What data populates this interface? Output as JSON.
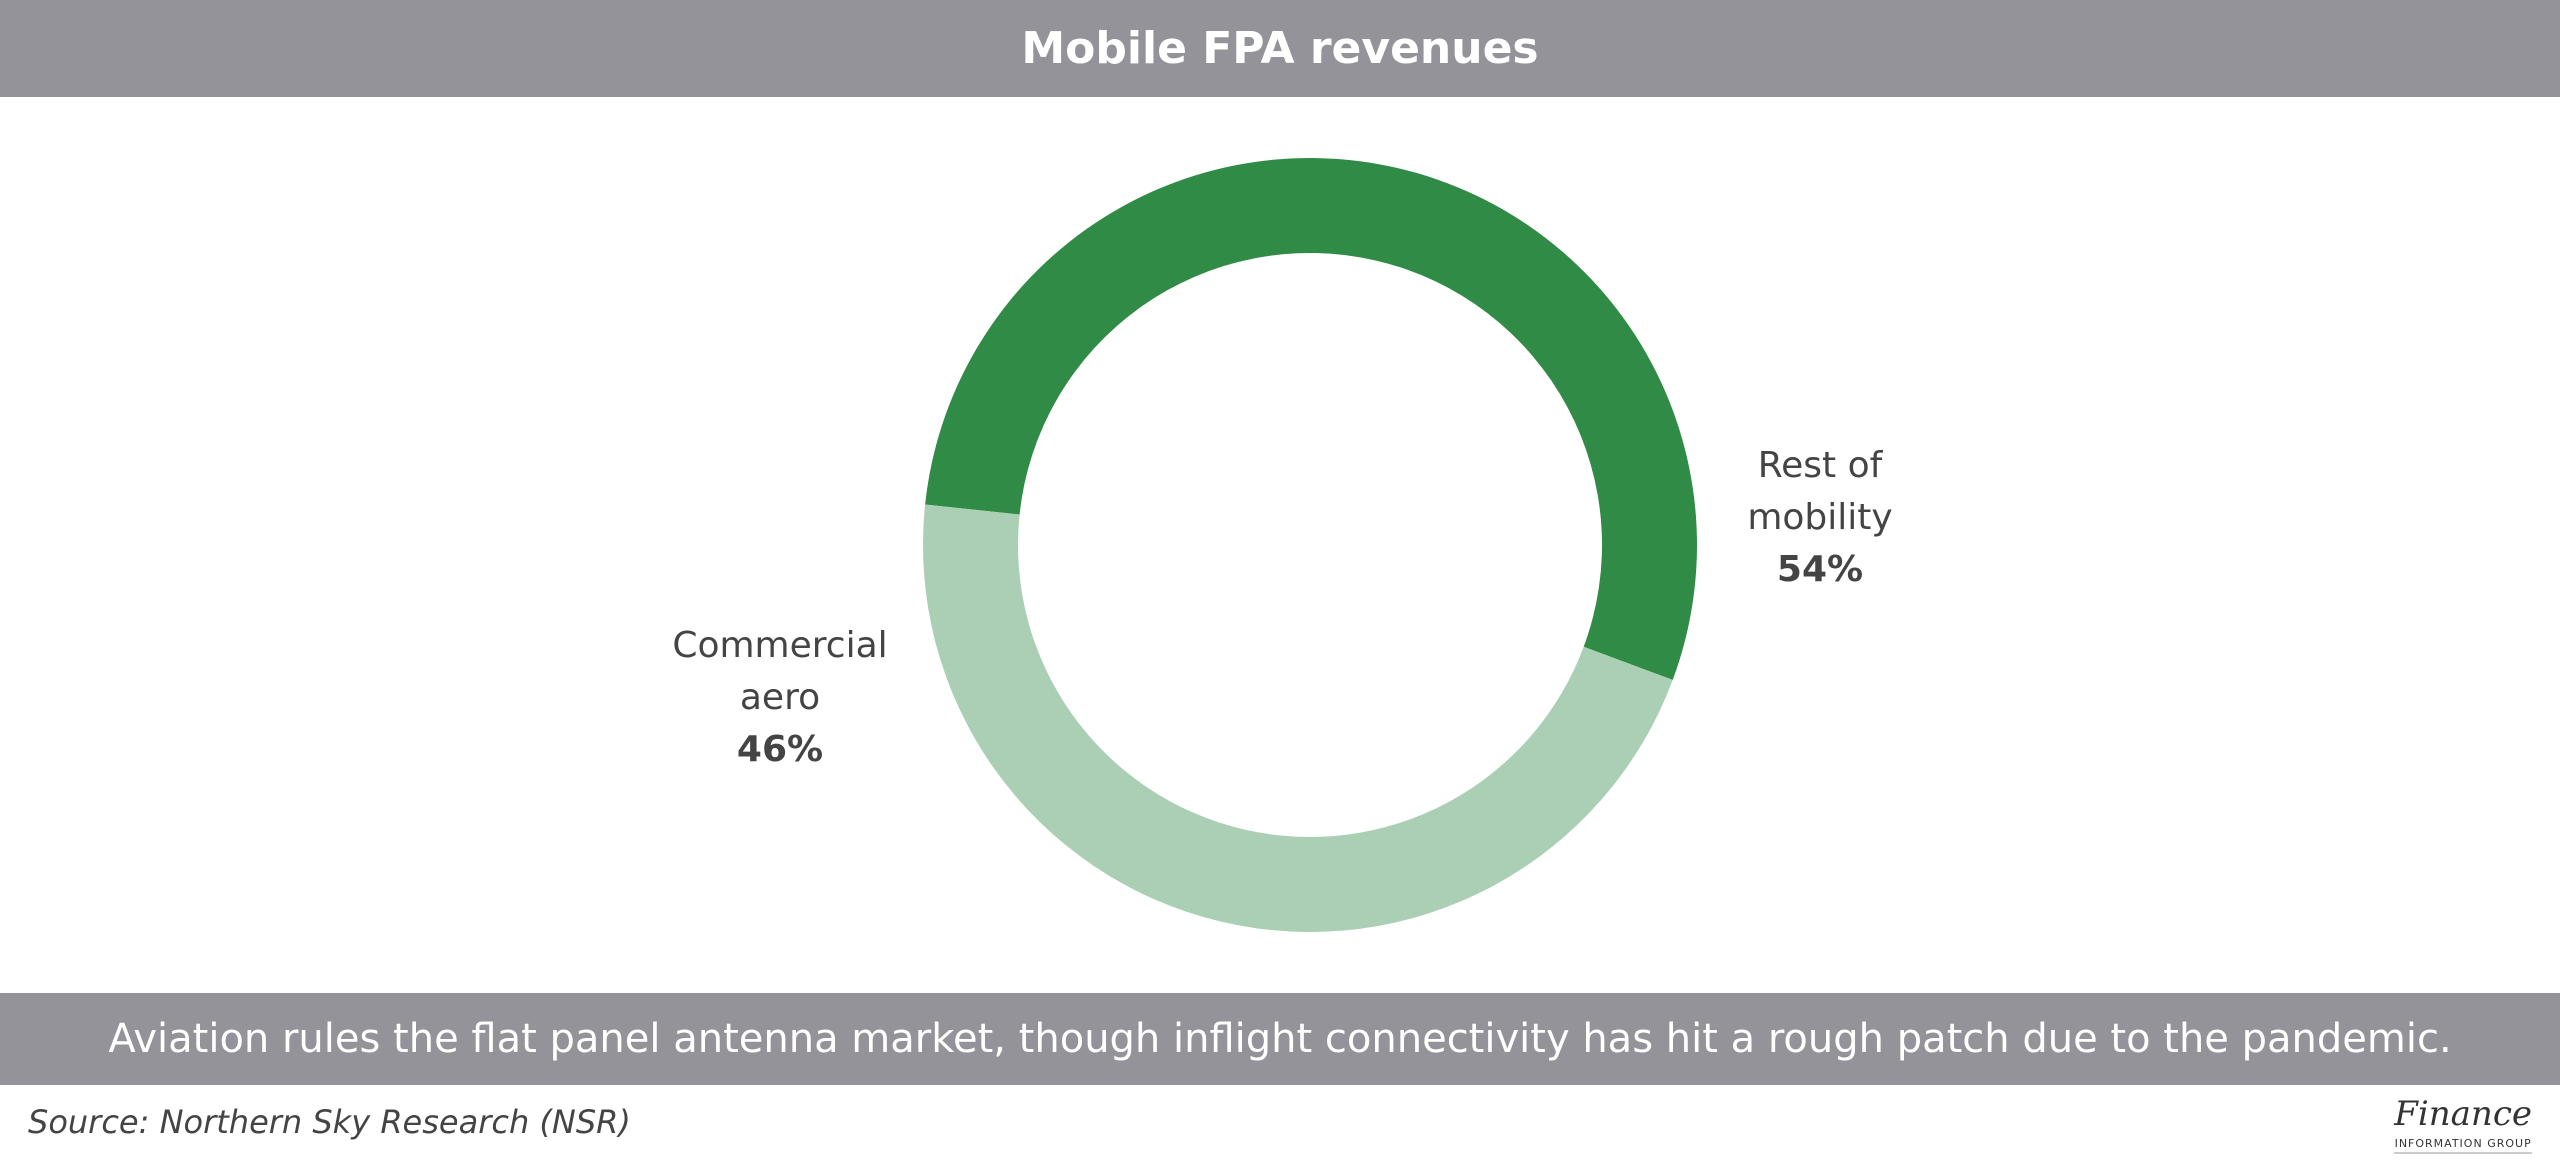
{
  "header": {
    "title": "Mobile FPA revenues"
  },
  "chart_data": {
    "type": "pie",
    "variant": "donut",
    "title": "Mobile FPA revenues",
    "slices": [
      {
        "label_line1": "Rest of",
        "label_line2": "mobility",
        "value": 54,
        "value_label": "54%",
        "color": "#2f8b45"
      },
      {
        "label_line1": "Commercial",
        "label_line2": "aero",
        "value": 46,
        "value_label": "46%",
        "color": "#abcfb5"
      }
    ]
  },
  "caption": "Aviation rules the flat panel antenna market, though inflight connectivity has hit a rough patch due to the pandemic.",
  "source": "Source: Northern Sky Research (NSR)",
  "logo": {
    "main": "Finance",
    "sub": "INFORMATION GROUP"
  }
}
